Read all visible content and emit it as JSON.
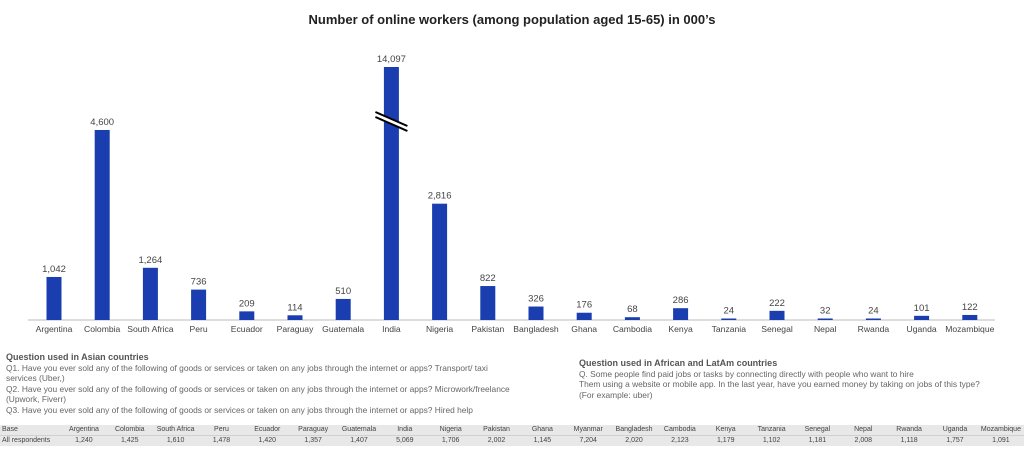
{
  "chart_data": {
    "type": "bar",
    "title": "Number of online workers (among population aged 15-65) in 000’s",
    "categories": [
      "Argentina",
      "Colombia",
      "South Africa",
      "Peru",
      "Ecuador",
      "Paraguay",
      "Guatemala",
      "India",
      "Nigeria",
      "Pakistan",
      "Bangladesh",
      "Ghana",
      "Cambodia",
      "Kenya",
      "Tanzania",
      "Senegal",
      "Nepal",
      "Rwanda",
      "Uganda",
      "Mozambique"
    ],
    "values": [
      1042,
      4600,
      1264,
      736,
      209,
      114,
      510,
      14097,
      2816,
      822,
      326,
      176,
      68,
      286,
      24,
      222,
      32,
      24,
      101,
      122
    ],
    "value_labels": [
      "1,042",
      "4,600",
      "1,264",
      "736",
      "209",
      "114",
      "510",
      "14,097",
      "2,816",
      "822",
      "326",
      "176",
      "68",
      "286",
      "24",
      "222",
      "32",
      "24",
      "101",
      "122"
    ],
    "broken_axis_category": "India",
    "bar_color": "#1a3eb0",
    "xlabel": "",
    "ylabel": "",
    "grid": false,
    "legend": "none"
  },
  "questions_asia": {
    "heading": "Question used in Asian countries",
    "lines": [
      "Q1. Have you  ever sold any of the following  of goods or services or taken on any jobs through  the internet  or apps? Transport/ taxi",
      "services (Uber,)",
      "Q2. Have you  ever sold any of the following  of goods or services or taken on any jobs through  the internet  or apps? Microwork/freelance",
      "(Upwork, Fiverr)",
      "Q3. Have you  ever sold any of the following  of goods or services or taken on any jobs through  the internet  or apps? Hired help"
    ]
  },
  "questions_africa": {
    "heading": "Question used in African and LatAm countries",
    "lines": [
      "Q. Some people find paid jobs or tasks by connecting directly with people who want to hire",
      "Them using a website or mobile app. In the last year, have you earned money by taking on jobs of this type?",
      "(For example: uber)"
    ]
  },
  "base_table": {
    "row1_label": "Base",
    "row2_label": "All respondents",
    "countries": [
      "Argentina",
      "Colombia",
      "South Africa",
      "Peru",
      "Ecuador",
      "Paraguay",
      "Guatemala",
      "India",
      "Nigeria",
      "Pakistan",
      "Ghana",
      "Myanmar",
      "Bangladesh",
      "Cambodia",
      "Kenya",
      "Tanzania",
      "Senegal",
      "Nepal",
      "Rwanda",
      "Uganda",
      "Mozambique"
    ],
    "values": [
      "1,240",
      "1,425",
      "1,610",
      "1,478",
      "1,420",
      "1,357",
      "1,407",
      "5,069",
      "1,706",
      "2,002",
      "1,145",
      "7,204",
      "2,020",
      "2,123",
      "1,179",
      "1,102",
      "1,181",
      "2,008",
      "1,118",
      "1,757",
      "1,091"
    ]
  }
}
